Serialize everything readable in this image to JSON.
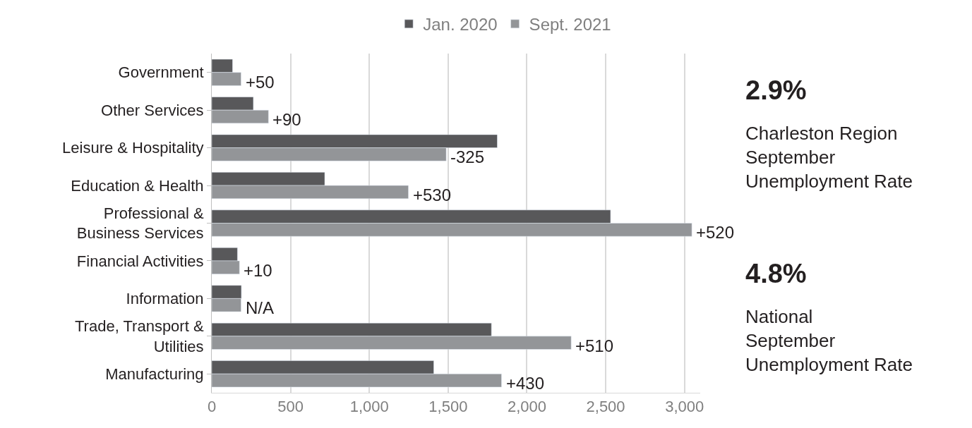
{
  "chart_data": {
    "type": "bar",
    "orientation": "horizontal",
    "categories": [
      "Government",
      "Other Services",
      "Leisure & Hospitality",
      "Education & Health",
      "Professional &\nBusiness Services",
      "Financial Activities",
      "Information",
      "Trade, Transport &\nUtilities",
      "Manufacturing"
    ],
    "series": [
      {
        "name": "Jan. 2020",
        "color": "#58585a",
        "values": [
          132,
          264,
          1812,
          717,
          2531,
          163,
          188,
          1775,
          1409
        ]
      },
      {
        "name": "Sept. 2021",
        "color": "#939598",
        "values": [
          186,
          360,
          1488,
          1248,
          3047,
          176,
          186,
          2281,
          1839
        ]
      }
    ],
    "xlim": [
      0,
      3100
    ],
    "xticks": [
      0,
      {
        "value": 500,
        "label": "500"
      },
      {
        "value": 1000,
        "label": "1,000"
      },
      {
        "value": 1500,
        "label": "1,500"
      },
      {
        "value": 2000,
        "label": "2,000"
      },
      {
        "value": 2500,
        "label": "2,500"
      },
      {
        "value": 3000,
        "label": "3,000"
      }
    ],
    "grid": "x",
    "legend": "top",
    "annotations": [
      "2.9%",
      "Charleston Region\nSeptember\nUnemployment Rate",
      "4.8%",
      "National\nSeptember\nUnemployment Rate",
      {
        "text": "+50",
        "x": 186,
        "y": "Government"
      },
      {
        "text": "+90",
        "x": 360,
        "y": "Other Services"
      },
      {
        "text": "-325",
        "x": 1488,
        "y": "Leisure & Hospitality"
      },
      {
        "text": "+530",
        "x": 1248,
        "y": "Education & Health"
      },
      {
        "text": "+520",
        "x": 3047,
        "y": "Professional &\nBusiness Services"
      },
      {
        "text": "+10",
        "x": 176,
        "y": "Financial Activities"
      },
      {
        "text": "N/A",
        "x": 186,
        "y": "Information"
      },
      {
        "text": "+510",
        "x": 2281,
        "y": "Trade, Transport &\nUtilities"
      },
      {
        "text": "+430",
        "x": 1839,
        "y": "Manufacturing"
      }
    ]
  }
}
